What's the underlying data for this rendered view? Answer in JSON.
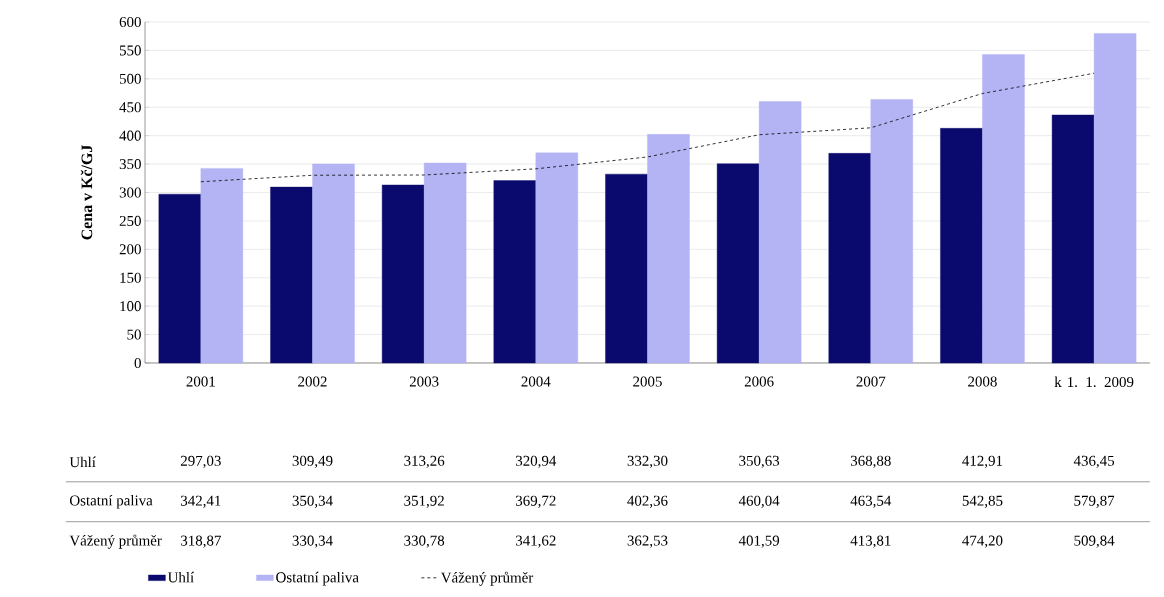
{
  "chart_data": {
    "type": "bar",
    "ylabel": "Cena v Kč/GJ",
    "categories": [
      "2001",
      "2002",
      "2003",
      "2004",
      "2005",
      "2006",
      "2007",
      "2008",
      "k 1. 1. 2009"
    ],
    "series": [
      {
        "name": "Uhlí",
        "color": "#0a0a6e",
        "values": [
          297.03,
          309.49,
          313.26,
          320.94,
          332.3,
          350.63,
          368.88,
          412.91,
          436.45
        ],
        "value_labels": [
          "297,03",
          "309,49",
          "313,26",
          "320,94",
          "332,30",
          "350,63",
          "368,88",
          "412,91",
          "436,45"
        ]
      },
      {
        "name": "Ostatní paliva",
        "color": "#b4b4f4",
        "values": [
          342.41,
          350.34,
          351.92,
          369.72,
          402.36,
          460.04,
          463.54,
          542.85,
          579.87
        ],
        "value_labels": [
          "342,41",
          "350,34",
          "351,92",
          "369,72",
          "402,36",
          "460,04",
          "463,54",
          "542,85",
          "579,87"
        ]
      },
      {
        "name": "Vážený průměr",
        "type": "line",
        "color": "#000000",
        "line_style": "dashed",
        "marker": "none",
        "values": [
          318.87,
          330.34,
          330.78,
          341.62,
          362.53,
          401.59,
          413.81,
          474.2,
          509.84
        ],
        "value_labels": [
          "318,87",
          "330,34",
          "330,78",
          "341,62",
          "362,53",
          "401,59",
          "413,81",
          "474,20",
          "509,84"
        ]
      }
    ],
    "ylim": [
      0,
      600
    ],
    "yticks": [
      0,
      50,
      100,
      150,
      200,
      250,
      300,
      350,
      400,
      450,
      500,
      550,
      600
    ],
    "grid": "y",
    "legend": "bottom"
  }
}
